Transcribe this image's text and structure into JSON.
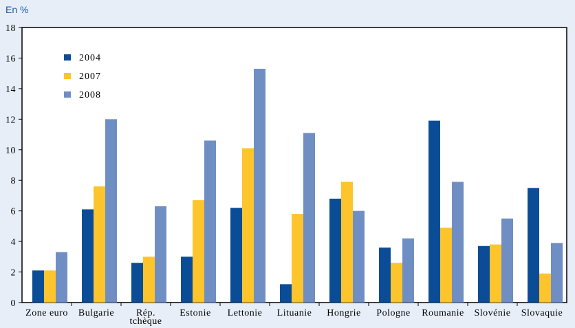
{
  "unit_label": "En %",
  "chart_data": {
    "type": "bar",
    "title": "",
    "xlabel": "",
    "ylabel": "",
    "ylim": [
      0,
      18
    ],
    "yticks": [
      0,
      2,
      4,
      6,
      8,
      10,
      12,
      14,
      16,
      18
    ],
    "grid": false,
    "legend_position": "top-left",
    "categories": [
      "Zone euro",
      "Bulgarie",
      "Rép. tchèque",
      "Estonie",
      "Lettonie",
      "Lituanie",
      "Hongrie",
      "Pologne",
      "Roumanie",
      "Slovénie",
      "Slovaquie"
    ],
    "category_label_lines": [
      [
        "Zone euro"
      ],
      [
        "Bulgarie"
      ],
      [
        "Rép.",
        "tchèque"
      ],
      [
        "Estonie"
      ],
      [
        "Lettonie"
      ],
      [
        "Lituanie"
      ],
      [
        "Hongrie"
      ],
      [
        "Pologne"
      ],
      [
        "Roumanie"
      ],
      [
        "Slovénie"
      ],
      [
        "Slovaquie"
      ]
    ],
    "series": [
      {
        "name": "2004",
        "color": "#0a4d96",
        "values": [
          2.1,
          6.1,
          2.6,
          3.0,
          6.2,
          1.2,
          6.8,
          3.6,
          11.9,
          3.7,
          7.5
        ]
      },
      {
        "name": "2007",
        "color": "#fdc42b",
        "values": [
          2.1,
          7.6,
          3.0,
          6.7,
          10.1,
          5.8,
          7.9,
          2.6,
          4.9,
          3.8,
          1.9
        ]
      },
      {
        "name": "2008",
        "color": "#6f8fc4",
        "values": [
          3.3,
          12.0,
          6.3,
          10.6,
          15.3,
          11.1,
          6.0,
          4.2,
          7.9,
          5.5,
          3.9
        ]
      }
    ]
  }
}
